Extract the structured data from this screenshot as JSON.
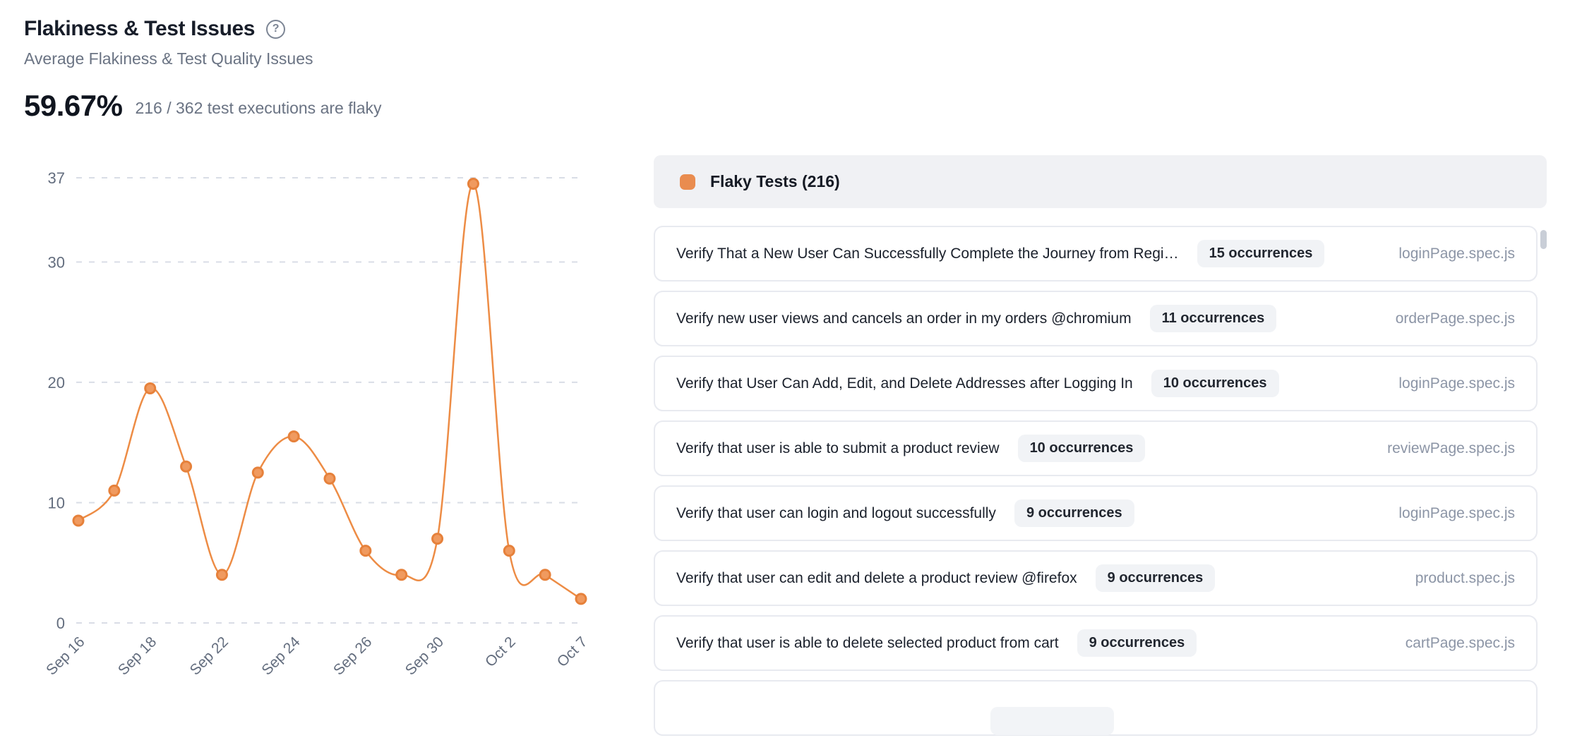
{
  "header": {
    "title": "Flakiness & Test Issues",
    "subtitle": "Average Flakiness & Test Quality Issues",
    "stat_value": "59.67%",
    "stat_caption": "216 / 362 test executions are flaky",
    "help_icon": "question-circle-icon",
    "help_glyph": "?"
  },
  "chart_data": {
    "type": "line",
    "series": [
      {
        "name": "Flaky Tests",
        "values": [
          8.5,
          11,
          19.5,
          13,
          4,
          12.5,
          15.5,
          12,
          6,
          4,
          7,
          36.5,
          6,
          4,
          2
        ]
      }
    ],
    "x_tick_labels": [
      "Sep 16",
      "Sep 18",
      "Sep 22",
      "Sep 24",
      "Sep 26",
      "Sep 30",
      "Oct 2",
      "Oct 7"
    ],
    "x_tick_point_indices": [
      0,
      2,
      4,
      6,
      8,
      10,
      12,
      14
    ],
    "y_ticks": [
      0,
      10,
      20,
      30,
      37
    ],
    "ylim": [
      0,
      37
    ],
    "grid": "horizontal-dashed",
    "legend_position": "none",
    "colors": {
      "line": "#ED8C45",
      "marker_fill": "#F09A5F",
      "marker_stroke": "#E6813B",
      "grid_line": "#D9DDE6",
      "axis_label": "#636D7E"
    }
  },
  "flaky_panel": {
    "legend_label": "Flaky Tests (216)",
    "legend_color": "#E98C4F",
    "rows": [
      {
        "title": "Verify That a New User Can Successfully Complete the Journey from Regi…",
        "occurrences": "15 occurrences",
        "spec": "loginPage.spec.js"
      },
      {
        "title": "Verify new user views and cancels an order in my orders @chromium",
        "occurrences": "11 occurrences",
        "spec": "orderPage.spec.js"
      },
      {
        "title": "Verify that User Can Add, Edit, and Delete Addresses after Logging In",
        "occurrences": "10 occurrences",
        "spec": "loginPage.spec.js"
      },
      {
        "title": "Verify that user is able to submit a product review",
        "occurrences": "10 occurrences",
        "spec": "reviewPage.spec.js"
      },
      {
        "title": "Verify that user can login and logout successfully",
        "occurrences": "9 occurrences",
        "spec": "loginPage.spec.js"
      },
      {
        "title": "Verify that user can edit and delete a product review @firefox",
        "occurrences": "9 occurrences",
        "spec": "product.spec.js"
      },
      {
        "title": "Verify that user is able to delete selected product from cart",
        "occurrences": "9 occurrences",
        "spec": "cartPage.spec.js"
      }
    ],
    "partial_row_visible": true
  }
}
